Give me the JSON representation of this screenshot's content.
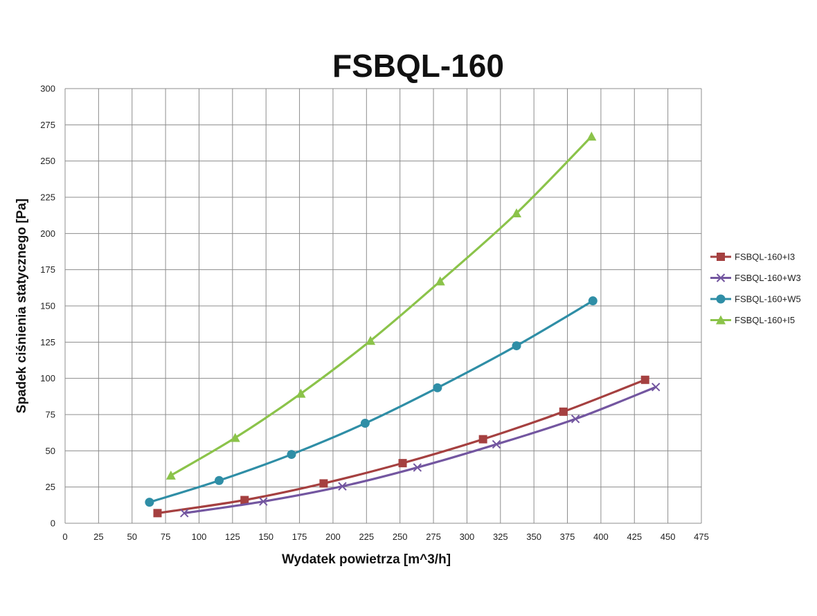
{
  "chart_data": {
    "type": "line",
    "title": "FSBQL-160",
    "xlabel": "Wydatek powietrza [m^3/h]",
    "ylabel": "Spadek ciśnienia statycznego [Pa]",
    "xlim": [
      0,
      475
    ],
    "ylim": [
      0,
      300
    ],
    "x_ticks": [
      "0",
      "25",
      "50",
      "75",
      "100",
      "125",
      "150",
      "175",
      "200",
      "225",
      "250",
      "275",
      "300",
      "325",
      "350",
      "375",
      "400",
      "425",
      "450",
      "475"
    ],
    "y_ticks": [
      "0",
      "25",
      "50",
      "75",
      "100",
      "125",
      "150",
      "175",
      "200",
      "225",
      "250",
      "275",
      "300"
    ],
    "grid": true,
    "legend_position": "right",
    "series": [
      {
        "name": "FSBQL-160+I3",
        "color": "#a54040",
        "marker": "square",
        "points": [
          [
            69,
            7
          ],
          [
            134,
            16
          ],
          [
            193,
            27.5
          ],
          [
            252,
            41.5
          ],
          [
            312,
            58
          ],
          [
            372,
            77
          ],
          [
            433,
            99
          ]
        ]
      },
      {
        "name": "FSBQL-160+W3",
        "color": "#7356a0",
        "marker": "x",
        "points": [
          [
            89,
            7
          ],
          [
            148,
            15
          ],
          [
            207,
            25.5
          ],
          [
            263,
            38.5
          ],
          [
            322,
            54.5
          ],
          [
            381,
            72
          ],
          [
            441,
            94
          ]
        ]
      },
      {
        "name": "FSBQL-160+W5",
        "color": "#2f8ea6",
        "marker": "circle",
        "points": [
          [
            63,
            14.5
          ],
          [
            115,
            29.5
          ],
          [
            169,
            47.5
          ],
          [
            224,
            69
          ],
          [
            278,
            93.5
          ],
          [
            337,
            122.5
          ],
          [
            394,
            153.5
          ]
        ]
      },
      {
        "name": "FSBQL-160+I5",
        "color": "#8bc34a",
        "marker": "triangle",
        "points": [
          [
            79,
            33
          ],
          [
            127,
            59
          ],
          [
            176,
            89.5
          ],
          [
            228,
            126
          ],
          [
            280,
            167
          ],
          [
            337,
            214
          ],
          [
            393,
            267
          ]
        ]
      }
    ]
  }
}
